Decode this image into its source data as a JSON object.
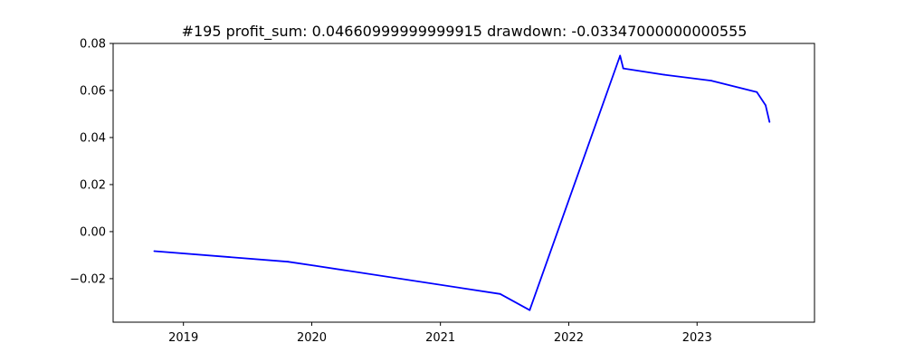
{
  "chart_data": {
    "type": "line",
    "title": "#195   profit_sum: 0.04660999999999915 drawdown: -0.03347000000000555",
    "xlabel": "",
    "ylabel": "",
    "x_axis_type": "date",
    "xlim": [
      "2018-06-15",
      "2023-12-01"
    ],
    "ylim": [
      -0.0385,
      0.08
    ],
    "grid": false,
    "legend": "none",
    "x_ticks": [
      {
        "value": "2019-01-01",
        "label": "2019"
      },
      {
        "value": "2020-01-01",
        "label": "2020"
      },
      {
        "value": "2021-01-01",
        "label": "2021"
      },
      {
        "value": "2022-01-01",
        "label": "2022"
      },
      {
        "value": "2023-01-01",
        "label": "2023"
      }
    ],
    "y_ticks": [
      {
        "value": 0.08,
        "label": "0.08"
      },
      {
        "value": 0.06,
        "label": "0.06"
      },
      {
        "value": 0.04,
        "label": "0.04"
      },
      {
        "value": 0.02,
        "label": "0.02"
      },
      {
        "value": 0.0,
        "label": "0.00"
      },
      {
        "value": -0.02,
        "label": "−0.02"
      }
    ],
    "series": [
      {
        "color": "#0000ff",
        "points": [
          {
            "x": "2018-10-10",
            "y": -0.0083
          },
          {
            "x": "2019-10-25",
            "y": -0.0128
          },
          {
            "x": "2020-01-10",
            "y": -0.0145
          },
          {
            "x": "2021-06-20",
            "y": -0.0265
          },
          {
            "x": "2021-09-12",
            "y": -0.0334
          },
          {
            "x": "2022-05-27",
            "y": 0.0748
          },
          {
            "x": "2022-06-05",
            "y": 0.0694
          },
          {
            "x": "2022-09-30",
            "y": 0.0667
          },
          {
            "x": "2023-02-10",
            "y": 0.0642
          },
          {
            "x": "2023-06-20",
            "y": 0.0593
          },
          {
            "x": "2023-07-15",
            "y": 0.0537
          },
          {
            "x": "2023-07-26",
            "y": 0.0466
          }
        ]
      }
    ]
  }
}
